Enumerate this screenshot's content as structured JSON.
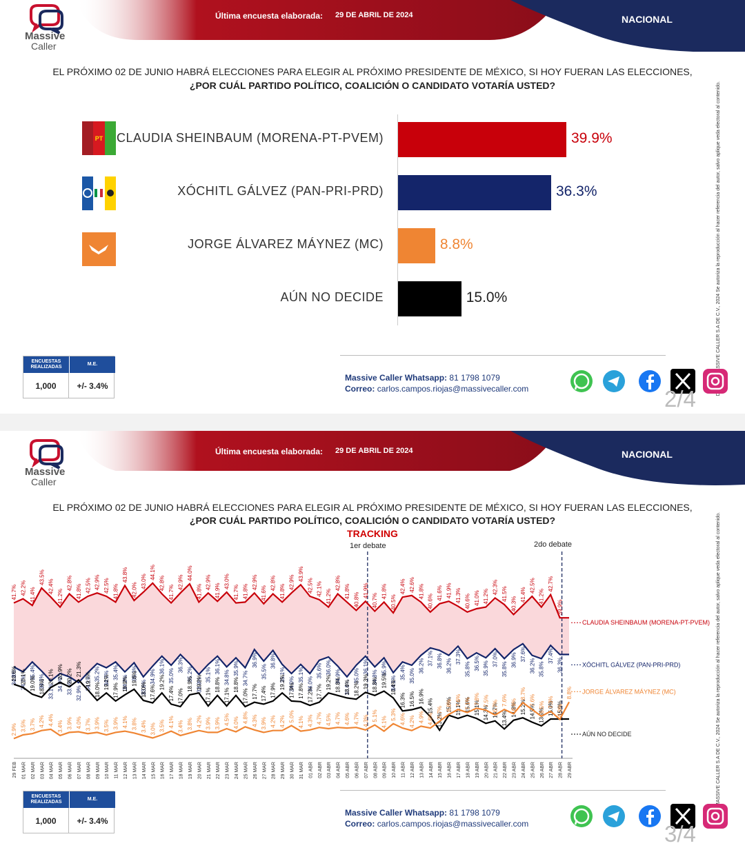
{
  "header": {
    "banner_label": "Última encuesta elaborada:",
    "banner_date": "29 DE ABRIL DE 2024",
    "region": "NACIONAL",
    "logo_line1": "Massive",
    "logo_line2": "Caller"
  },
  "question": {
    "line1": "EL PRÓXIMO 02 DE JUNIO HABRÁ ELECCIONES PARA ELEGIR AL PRÓXIMO PRESIDENTE DE MÉXICO, SI HOY FUERAN LAS ELECCIONES,",
    "line2": "¿POR CUÁL PARTIDO POLÍTICO, COALICIÓN O CANDIDATO VOTARÍA USTED?"
  },
  "side_note": "D.R., (C) MASSIVE CALLER S.A DE C.V., 2024 Se autoriza la reproducción al hacer referencia del autor, salvo aplique veda electoral al contenido.",
  "stats": {
    "h1": "ENCUESTAS REALIZADAS",
    "h2": "M.E.",
    "v1": "1,000",
    "v2": "+/- 3.4%"
  },
  "contact": {
    "wa_label": "Massive Caller Whatsapp:",
    "wa_value": "81 1798 1079",
    "mail_label": "Correo:",
    "mail_value": "carlos.campos.riojas@massivecaller.com"
  },
  "social_icons": [
    "whatsapp-icon",
    "telegram-icon",
    "facebook-icon",
    "x-icon",
    "instagram-icon"
  ],
  "pages": {
    "p1": "2/4",
    "p2": "3/4"
  },
  "colors": {
    "morena": "#c8000a",
    "pan": "#14256a",
    "mc": "#ef8533",
    "undecided": "#000000",
    "banner": "#b0111e",
    "navy": "#1b2a5e"
  },
  "tracking": {
    "title": "TRACKING",
    "debate1": "1er debate",
    "debate2": "2do debate"
  },
  "chart_data": [
    {
      "type": "bar",
      "categories": [
        "CLAUDIA SHEINBAUM (MORENA-PT-PVEM)",
        "XÓCHITL GÁLVEZ (PAN-PRI-PRD)",
        "JORGE ÁLVAREZ MÁYNEZ (MC)",
        "AÚN NO DECIDE"
      ],
      "values": [
        39.9,
        36.3,
        8.8,
        15.0
      ],
      "labels": [
        "39.9%",
        "36.3%",
        "8.8%",
        "15.0%"
      ],
      "colors": [
        "#c8000a",
        "#14256a",
        "#ef8533",
        "#000000"
      ],
      "xlim": [
        0,
        60
      ]
    },
    {
      "type": "line",
      "title": "TRACKING",
      "x": [
        "29 FEB",
        "01 MAR",
        "02 MAR",
        "03 MAR",
        "04 MAR",
        "05 MAR",
        "06 MAR",
        "07 MAR",
        "08 MAR",
        "09 MAR",
        "10 MAR",
        "11 MAR",
        "12 MAR",
        "13 MAR",
        "14 MAR",
        "15 MAR",
        "16 MAR",
        "17 MAR",
        "18 MAR",
        "19 MAR",
        "20 MAR",
        "21 MAR",
        "22 MAR",
        "23 MAR",
        "24 MAR",
        "25 MAR",
        "26 MAR",
        "27 MAR",
        "28 MAR",
        "29 MAR",
        "30 MAR",
        "31 MAR",
        "01 ABR",
        "02 ABR",
        "03 ABR",
        "04 ABR",
        "05 ABR",
        "06 ABR",
        "07 ABR",
        "08 ABR",
        "09 ABR",
        "10 ABR",
        "11 ABR",
        "12 ABR",
        "13 ABR",
        "14 ABR",
        "15 ABR",
        "16 ABR",
        "17 ABR",
        "18 ABR",
        "19 ABR",
        "20 ABR",
        "21 ABR",
        "22 ABR",
        "23 ABR",
        "24 ABR",
        "25 ABR",
        "26 ABR",
        "27 ABR",
        "28 ABR",
        "29 ABR"
      ],
      "debates": [
        {
          "label": "1er debate",
          "x": "07 ABR"
        },
        {
          "label": "2do debate",
          "x": "28 ABR"
        }
      ],
      "ylim": [
        0,
        50
      ],
      "series": [
        {
          "name": "CLAUDIA SHEINBAUM (MORENA-PT-PVEM)",
          "color": "#c8000a",
          "values": [
            41.7,
            42.2,
            41.4,
            43.5,
            42.4,
            41.2,
            42.8,
            41.8,
            42.5,
            42.9,
            42.5,
            41.8,
            43.8,
            42.0,
            43.0,
            44.1,
            42.8,
            41.7,
            42.9,
            44.0,
            41.8,
            42.9,
            41.9,
            43.0,
            41.7,
            41.8,
            42.9,
            41.6,
            42.8,
            41.8,
            42.9,
            43.9,
            42.5,
            42.1,
            41.2,
            42.8,
            41.8,
            40.8,
            41.9,
            40.7,
            41.8,
            40.5,
            42.4,
            42.6,
            41.8,
            40.6,
            41.6,
            41.9,
            41.3,
            40.6,
            41.0,
            41.2,
            42.3,
            41.5,
            40.3,
            41.4,
            42.5,
            41.2,
            42.7,
            39.9,
            39.9
          ],
          "labels": [
            "41.7%",
            "42.2%",
            "41.4%",
            "43.5%",
            "42.4%",
            "41.2%",
            "42.8%",
            "41.8%",
            "42.5%",
            "42.9%",
            "42.5%",
            "41.8%",
            "43.8%",
            "42.0%",
            "43.0%",
            "44.1%",
            "42.8%",
            "41.7%",
            "42.9%",
            "44.0%",
            "41.8%",
            "42.9%",
            "41.9%",
            "43.0%",
            "41.7%",
            "41.8%",
            "42.9%",
            "41.6%",
            "42.8%",
            "41.8%",
            "42.9%",
            "43.9%",
            "42.5%",
            "42.1%",
            "41.2%",
            "42.8%",
            "41.8%",
            "40.8%",
            "41.9%",
            "40.7%",
            "41.8%",
            "40.5%",
            "42.4%",
            "42.6%",
            "41.8%",
            "40.6%",
            "41.6%",
            "41.9%",
            "41.3%",
            "40.6%",
            "41.0%",
            "41.2%",
            "42.3%",
            "41.5%",
            "40.3%",
            "41.4%",
            "42.5%",
            "41.2%",
            "42.7%",
            "39.9%",
            ""
          ]
        },
        {
          "name": "XÓCHITL GÁLVEZ (PAN-PRI-PRD)",
          "color": "#14256a",
          "values": [
            34.8,
            34.2,
            35.4,
            34.3,
            33.1,
            34.0,
            33.6,
            32.9,
            34.1,
            35.2,
            34.7,
            35.4,
            34.2,
            35.3,
            33.6,
            34.9,
            36.1,
            35.0,
            36.3,
            35.2,
            33.9,
            35.1,
            36.1,
            34.8,
            35.9,
            34.7,
            36.9,
            35.5,
            36.8,
            35.1,
            34.0,
            35.1,
            34.0,
            35.6,
            36.0,
            34.9,
            33.6,
            35.0,
            36.1,
            34.8,
            35.9,
            34.1,
            35.4,
            35.0,
            36.2,
            37.1,
            36.8,
            36.2,
            37.3,
            35.8,
            36.5,
            35.9,
            37.0,
            35.8,
            36.9,
            37.6,
            36.2,
            35.8,
            37.4,
            36.3,
            36.3
          ],
          "labels": [
            "34.8%",
            "34.2%",
            "35.4%",
            "34.3%",
            "33.1%",
            "34.0%",
            "33.6%",
            "32.9%",
            "34.1%",
            "35.2%",
            "34.7%",
            "35.4%",
            "34.2%",
            "35.3%",
            "33.6%",
            "34.9%",
            "36.1%",
            "35.0%",
            "36.3%",
            "35.2%",
            "33.9%",
            "35.1%",
            "36.1%",
            "34.8%",
            "35.9%",
            "34.7%",
            "36.9%",
            "35.5%",
            "36.8%",
            "35.1%",
            "34.0%",
            "35.1%",
            "34.0%",
            "35.6%",
            "36.0%",
            "34.9%",
            "33.6%",
            "35.0%",
            "36.1%",
            "34.8%",
            "35.9%",
            "34.1%",
            "35.4%",
            "35.0%",
            "36.2%",
            "37.1%",
            "36.8%",
            "36.2%",
            "37.3%",
            "35.8%",
            "36.5%",
            "35.9%",
            "37.0%",
            "35.8%",
            "36.9%",
            "37.6%",
            "36.2%",
            "35.8%",
            "37.4%",
            "36.3%",
            ""
          ]
        },
        {
          "name": "AÚN NO DECIDE",
          "color": "#000000",
          "values": [
            20.6,
            20.1,
            19.0,
            18.5,
            20.1,
            20.9,
            20.2,
            21.3,
            19.7,
            18.0,
            19.2,
            17.9,
            18.9,
            19.8,
            18.0,
            17.6,
            19.2,
            17.4,
            17.0,
            18.9,
            19.2,
            17.1,
            18.8,
            17.1,
            18.8,
            17.0,
            17.7,
            17.4,
            17.9,
            19.2,
            17.9,
            17.8,
            17.2,
            17.7,
            19.2,
            18.8,
            18.4,
            18.2,
            19.3,
            18.8,
            19.5,
            18.4,
            16.3,
            16.5,
            16.9,
            15.4,
            13.2,
            15.6,
            15.1,
            15.6,
            15.1,
            14.3,
            14.7,
            13.4,
            14.8,
            15.2,
            14.5,
            13.9,
            15.0,
            15.0,
            15.0
          ],
          "labels": [
            "20.6%",
            "20.1%",
            "19.0%",
            "18.5%",
            "20.1%",
            "20.9%",
            "20.2%",
            "21.3%",
            "19.7%",
            "18.0%",
            "19.2%",
            "17.9%",
            "18.9%",
            "19.8%",
            "18.0%",
            "17.6%",
            "19.2%",
            "17.4%",
            "17.0%",
            "18.9%",
            "19.2%",
            "17.1%",
            "18.8%",
            "17.1%",
            "18.8%",
            "17.0%",
            "17.7%",
            "17.4%",
            "17.9%",
            "19.2%",
            "17.9%",
            "17.8%",
            "17.2%",
            "17.7%",
            "19.2%",
            "18.8%",
            "18.4%",
            "18.2%",
            "19.3%",
            "18.8%",
            "19.5%",
            "18.4%",
            "16.3%",
            "16.5%",
            "16.9%",
            "15.4%",
            "13.2%",
            "15.6%",
            "15.1%",
            "15.6%",
            "15.1%",
            "14.3%",
            "14.7%",
            "13.4%",
            "14.8%",
            "15.2%",
            "14.5%",
            "13.9%",
            "15.0%",
            "15.0%",
            ""
          ]
        },
        {
          "name": "JORGE ÁLVAREZ MÁYNEZ (MC)",
          "color": "#ef8533",
          "values": [
            2.9,
            3.5,
            3.7,
            4.2,
            4.4,
            3.4,
            3.9,
            4.0,
            3.7,
            3.9,
            3.5,
            3.9,
            4.1,
            3.8,
            3.4,
            3.0,
            3.5,
            4.1,
            3.4,
            3.8,
            4.2,
            3.9,
            3.9,
            4.5,
            4.0,
            4.8,
            4.3,
            3.9,
            4.2,
            4.2,
            5.0,
            4.1,
            4.3,
            4.7,
            4.5,
            4.7,
            4.6,
            4.7,
            4.3,
            5.1,
            4.1,
            5.3,
            4.6,
            4.2,
            4.9,
            4.6,
            5.7,
            6.8,
            7.6,
            7.1,
            7.8,
            7.5,
            6.7,
            7.6,
            6.9,
            8.7,
            7.6,
            6.5,
            7.3,
            6.0,
            8.8
          ],
          "labels": [
            "2.9%",
            "3.5%",
            "3.7%",
            "4.2%",
            "4.4%",
            "3.4%",
            "3.9%",
            "4.0%",
            "3.7%",
            "3.9%",
            "3.5%",
            "3.9%",
            "4.1%",
            "3.8%",
            "3.4%",
            "3.0%",
            "3.5%",
            "4.1%",
            "3.4%",
            "3.8%",
            "4.2%",
            "3.9%",
            "3.9%",
            "4.5%",
            "4.0%",
            "4.8%",
            "4.3%",
            "3.9%",
            "4.2%",
            "4.2%",
            "5.0%",
            "4.1%",
            "4.3%",
            "4.7%",
            "4.5%",
            "4.7%",
            "4.6%",
            "4.7%",
            "4.3%",
            "5.1%",
            "4.1%",
            "5.3%",
            "4.6%",
            "4.2%",
            "4.9%",
            "4.6%",
            "5.7%",
            "6.8%",
            "7.6%",
            "7.1%",
            "7.8%",
            "7.5%",
            "6.7%",
            "7.6%",
            "6.9%",
            "8.7%",
            "7.6%",
            "6.5%",
            "7.3%",
            "6.0%",
            "8.8%"
          ]
        }
      ]
    }
  ]
}
